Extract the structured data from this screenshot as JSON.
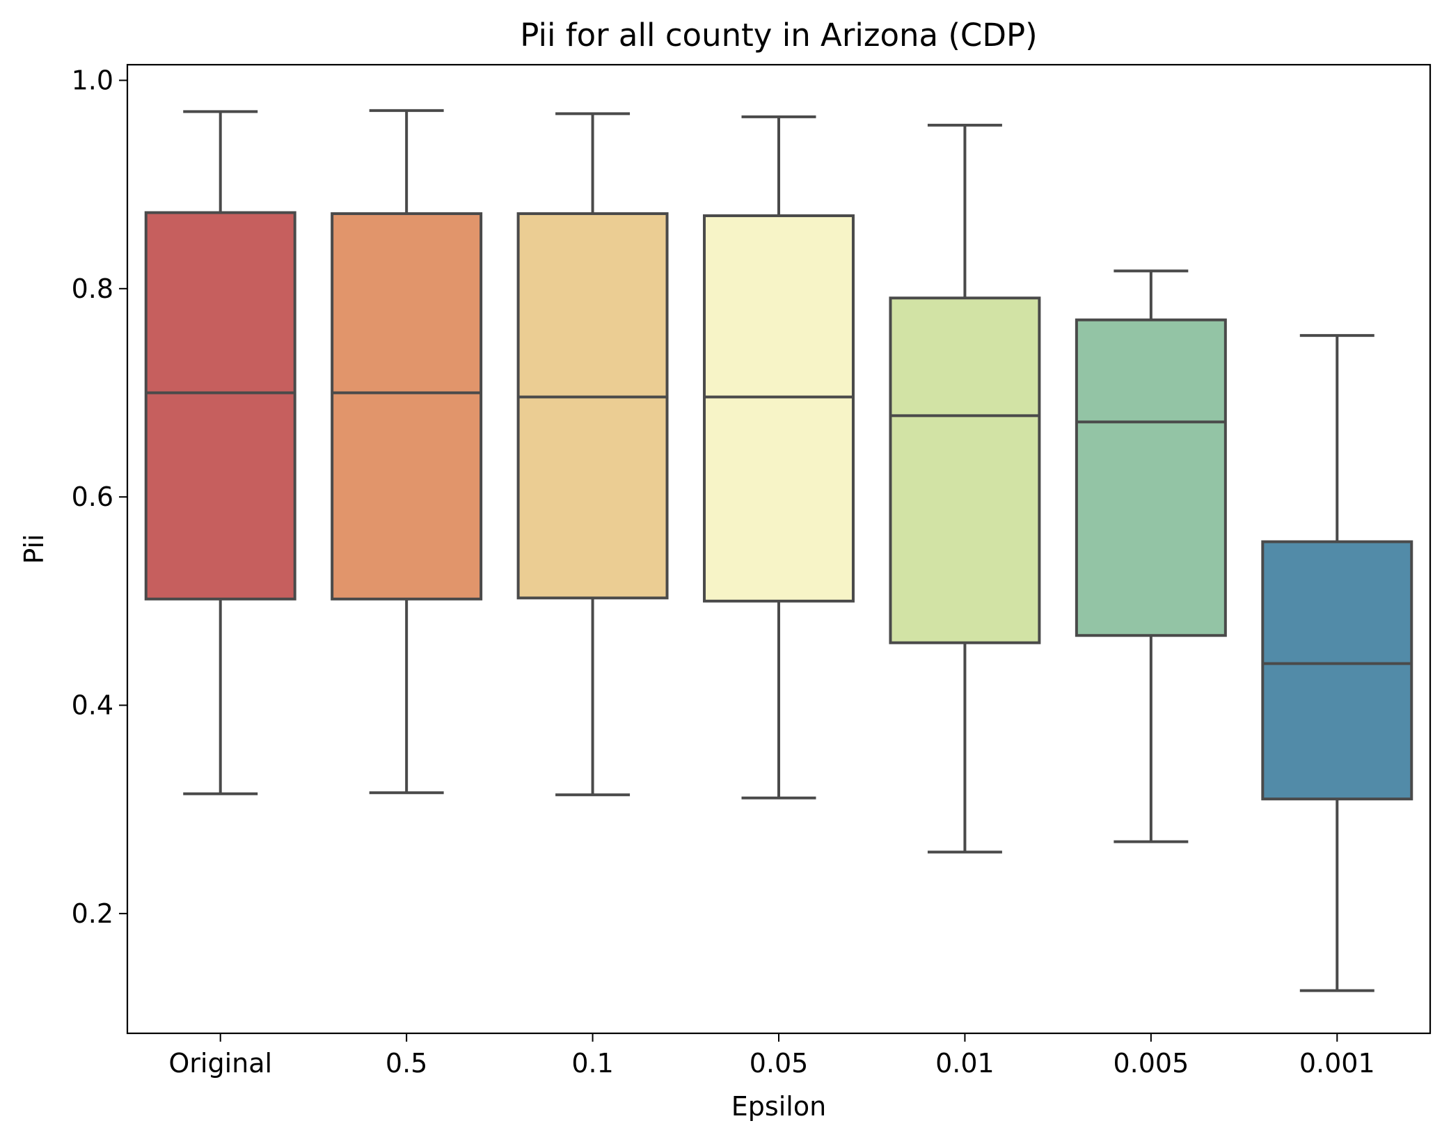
{
  "chart_data": {
    "type": "box",
    "title": "Pii for all county in Arizona (CDP)",
    "xlabel": "Epsilon",
    "ylabel": "Pii",
    "ylim": [
      0.085,
      1.015
    ],
    "yticks": [
      0.2,
      0.4,
      0.6,
      0.8,
      1.0
    ],
    "ytick_labels": [
      "0.2",
      "0.4",
      "0.6",
      "0.8",
      "1.0"
    ],
    "grid": false,
    "legend": "none",
    "box_edge_color": "#4a4a4a",
    "series": [
      {
        "category": "Original",
        "whisker_low": 0.315,
        "q1": 0.502,
        "median": 0.7,
        "q3": 0.873,
        "whisker_high": 0.97,
        "color": "#c65f5e"
      },
      {
        "category": "0.5",
        "whisker_low": 0.316,
        "q1": 0.502,
        "median": 0.7,
        "q3": 0.872,
        "whisker_high": 0.971,
        "color": "#e1956b"
      },
      {
        "category": "0.1",
        "whisker_low": 0.314,
        "q1": 0.503,
        "median": 0.696,
        "q3": 0.872,
        "whisker_high": 0.968,
        "color": "#ebcd93"
      },
      {
        "category": "0.05",
        "whisker_low": 0.311,
        "q1": 0.5,
        "median": 0.696,
        "q3": 0.87,
        "whisker_high": 0.965,
        "color": "#f7f4c7"
      },
      {
        "category": "0.01",
        "whisker_low": 0.259,
        "q1": 0.46,
        "median": 0.678,
        "q3": 0.791,
        "whisker_high": 0.957,
        "color": "#d2e3a5"
      },
      {
        "category": "0.005",
        "whisker_low": 0.269,
        "q1": 0.467,
        "median": 0.672,
        "q3": 0.77,
        "whisker_high": 0.817,
        "color": "#93c4a5"
      },
      {
        "category": "0.001",
        "whisker_low": 0.126,
        "q1": 0.31,
        "median": 0.44,
        "q3": 0.557,
        "whisker_high": 0.755,
        "color": "#528ba8"
      }
    ]
  }
}
